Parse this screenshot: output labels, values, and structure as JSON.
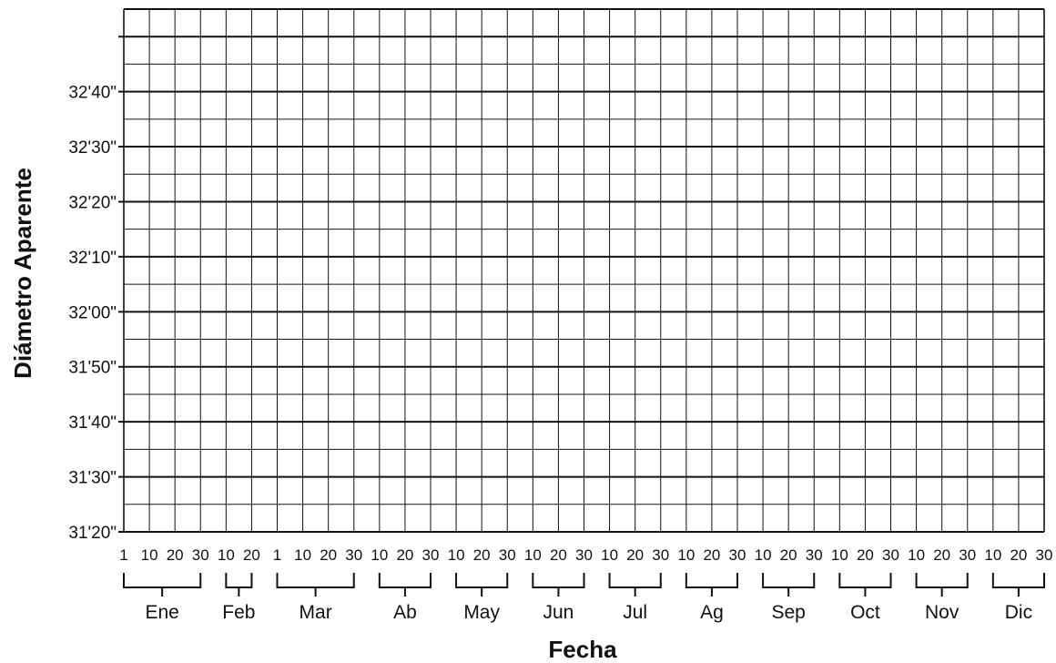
{
  "chart_data": {
    "type": "line",
    "title": "",
    "xlabel": "Fecha",
    "ylabel": "Diámetro Aparente",
    "y_ticks": [
      "31'20\"",
      "31'30\"",
      "31'40\"",
      "31'50\"",
      "32'00\"",
      "32'10\"",
      "32'20\"",
      "32'30\"",
      "32'40\""
    ],
    "ylim_arcsec": [
      1880,
      1970
    ],
    "months": [
      {
        "name": "Ene",
        "days": [
          "1",
          "10",
          "20",
          "30"
        ]
      },
      {
        "name": "Feb",
        "days": [
          "10",
          "20"
        ]
      },
      {
        "name": "Mar",
        "days": [
          "1",
          "10",
          "20",
          "30"
        ]
      },
      {
        "name": "Ab",
        "days": [
          "10",
          "20",
          "30"
        ]
      },
      {
        "name": "May",
        "days": [
          "10",
          "20",
          "30"
        ]
      },
      {
        "name": "Jun",
        "days": [
          "10",
          "20",
          "30"
        ]
      },
      {
        "name": "Jul",
        "days": [
          "10",
          "20",
          "30"
        ]
      },
      {
        "name": "Ag",
        "days": [
          "10",
          "20",
          "30"
        ]
      },
      {
        "name": "Sep",
        "days": [
          "10",
          "20",
          "30"
        ]
      },
      {
        "name": "Oct",
        "days": [
          "10",
          "20",
          "30"
        ]
      },
      {
        "name": "Nov",
        "days": [
          "10",
          "20",
          "30"
        ]
      },
      {
        "name": "Dic",
        "days": [
          "10",
          "20",
          "30"
        ]
      }
    ],
    "grid": true,
    "series": []
  },
  "colors": {
    "grid": "#111111",
    "background": "#ffffff"
  }
}
